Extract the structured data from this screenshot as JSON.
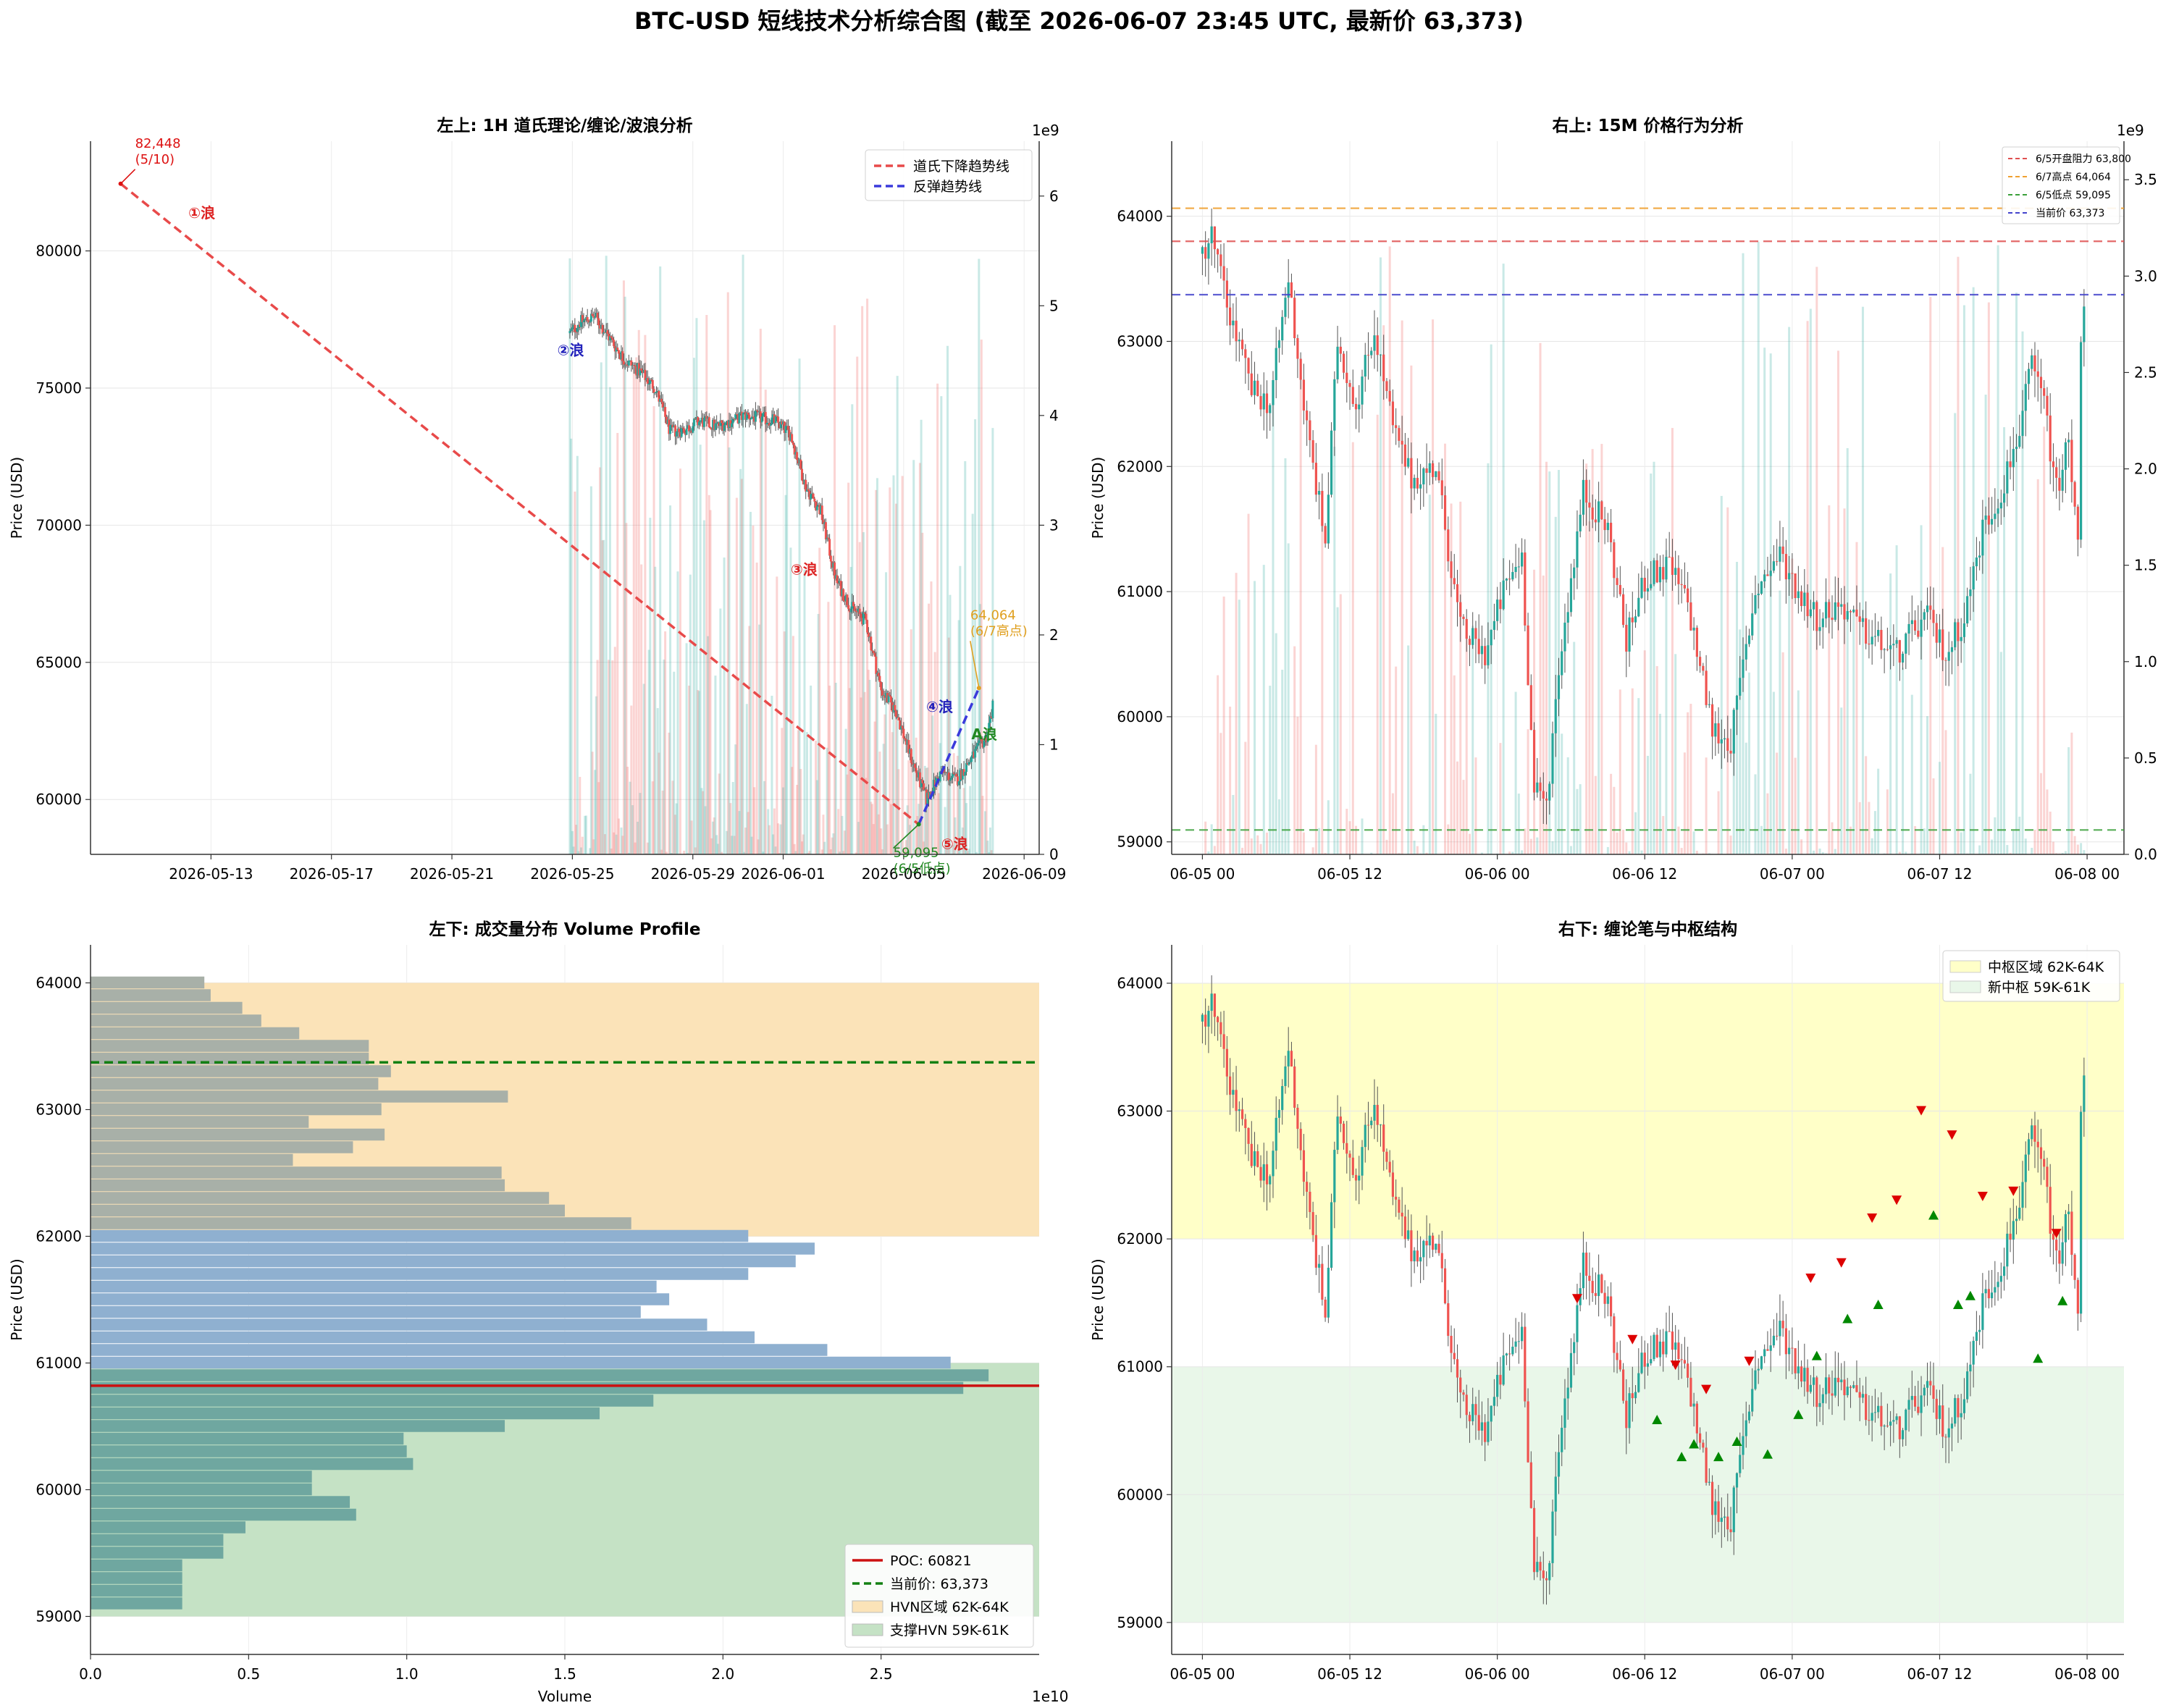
{
  "figure": {
    "suptitle": "BTC-USD 短线技术分析综合图 (截至 2026-06-07 23:45 UTC, 最新价 63,373)"
  },
  "colors": {
    "up": "#26a69a",
    "down": "#ef5350",
    "dow_line": "#e84a4a",
    "rebound_line": "#3a3adb",
    "resistance": "#e05050",
    "high": "#f0a030",
    "low": "#3aa03a",
    "current": "#4444cc",
    "vp_blue": "#8fb0d0",
    "vp_teal": "#6fa7a0",
    "vp_gray": "#a8b0a8",
    "hvn_upper": "#fbe3b8",
    "hvn_lower": "#c5e2c5",
    "zs_upper": "#ffffc8",
    "zs_lower": "#e9f7e9",
    "poc": "#cc1111",
    "current_vp": "#138013"
  },
  "chart_data": [
    {
      "id": "tl",
      "type": "candlestick",
      "title": "左上: 1H 道氏理论/缠论/波浪分析",
      "ylabel": "Price (USD)",
      "ylim": [
        58000,
        84000
      ],
      "yticks": [
        60000,
        65000,
        70000,
        75000,
        80000
      ],
      "xlim": [
        "2026-05-09",
        "2026-06-09 12:00"
      ],
      "xticks": [
        "2026-05-13",
        "2026-05-17",
        "2026-05-21",
        "2026-05-25",
        "2026-05-29",
        "2026-06-01",
        "2026-06-05",
        "2026-06-09"
      ],
      "volume_axis": {
        "label_exponent": "1e9",
        "ylim": [
          0,
          6.5
        ],
        "yticks": [
          0,
          1,
          2,
          3,
          4,
          5,
          6
        ]
      },
      "price_path": [
        [
          "2026-05-24 22:00",
          77000
        ],
        [
          "2026-05-25 06:00",
          77400
        ],
        [
          "2026-05-25 18:00",
          77600
        ],
        [
          "2026-05-26 06:00",
          76800
        ],
        [
          "2026-05-26 18:00",
          76000
        ],
        [
          "2026-05-27 06:00",
          75600
        ],
        [
          "2026-05-27 18:00",
          75000
        ],
        [
          "2026-05-28 06:00",
          73400
        ],
        [
          "2026-05-28 18:00",
          73500
        ],
        [
          "2026-05-29 06:00",
          73800
        ],
        [
          "2026-05-29 18:00",
          73600
        ],
        [
          "2026-05-30 06:00",
          73800
        ],
        [
          "2026-05-30 18:00",
          74000
        ],
        [
          "2026-05-31 06:00",
          73900
        ],
        [
          "2026-05-31 18:00",
          73800
        ],
        [
          "2026-06-01 06:00",
          73300
        ],
        [
          "2026-06-01 18:00",
          71400
        ],
        [
          "2026-06-02 06:00",
          70500
        ],
        [
          "2026-06-02 18:00",
          68000
        ],
        [
          "2026-06-03 06:00",
          67000
        ],
        [
          "2026-06-03 18:00",
          66500
        ],
        [
          "2026-06-04 06:00",
          64000
        ],
        [
          "2026-06-04 18:00",
          63200
        ],
        [
          "2026-06-05 06:00",
          61500
        ],
        [
          "2026-06-05 18:00",
          60000
        ],
        [
          "2026-06-06 06:00",
          61000
        ],
        [
          "2026-06-06 18:00",
          60700
        ],
        [
          "2026-06-07 06:00",
          61500
        ],
        [
          "2026-06-07 18:00",
          62300
        ],
        [
          "2026-06-07 23:00",
          63373
        ]
      ],
      "lines": [
        {
          "name": "道氏下降趋势线",
          "color_key": "dow_line",
          "points": [
            [
              "2026-05-10",
              82448
            ],
            [
              "2026-06-05 12:00",
              59095
            ]
          ]
        },
        {
          "name": "反弹趋势线",
          "color_key": "rebound_line",
          "points": [
            [
              "2026-06-05 12:00",
              59095
            ],
            [
              "2026-06-07 12:00",
              64064
            ]
          ]
        }
      ],
      "legend_position": "upper right",
      "annotations": [
        {
          "text": "82,448\n(5/10)",
          "x": "2026-05-10",
          "y": 82448,
          "color": "#dd1111"
        },
        {
          "text": "64,064\n(6/7高点)",
          "x": "2026-06-07 12:00",
          "y": 64064,
          "color": "#e0a020"
        },
        {
          "text": "59,095\n(6/5低点)",
          "x": "2026-06-05 12:00",
          "y": 59095,
          "color": "#228822"
        }
      ],
      "wave_labels": [
        {
          "text": "①浪",
          "x": "2026-05-12 06:00",
          "y": 81200,
          "color": "#dd2222"
        },
        {
          "text": "②浪",
          "x": "2026-05-24 12:00",
          "y": 76200,
          "color": "#2222bb"
        },
        {
          "text": "③浪",
          "x": "2026-06-01 06:00",
          "y": 68200,
          "color": "#dd2222"
        },
        {
          "text": "④浪",
          "x": "2026-06-05 18:00",
          "y": 63200,
          "color": "#2222bb"
        },
        {
          "text": "⑤浪",
          "x": "2026-06-06 06:00",
          "y": 58200,
          "color": "#dd2222"
        },
        {
          "text": "A浪",
          "x": "2026-06-07 06:00",
          "y": 62200,
          "color": "#228822"
        }
      ]
    },
    {
      "id": "tr",
      "type": "candlestick",
      "title": "右上: 15M 价格行为分析",
      "ylabel": "Price (USD)",
      "ylim": [
        58900,
        64600
      ],
      "yticks": [
        59000,
        60000,
        61000,
        62000,
        63000,
        64000
      ],
      "xlim": [
        "2026-06-04 21:30",
        "2026-06-08 03:00"
      ],
      "xticks": [
        "06-05 00",
        "06-05 12",
        "06-06 00",
        "06-06 12",
        "06-07 00",
        "06-07 12",
        "06-08 00"
      ],
      "volume_axis": {
        "label_exponent": "1e9",
        "ylim": [
          0,
          3.7
        ],
        "yticks": [
          0.0,
          0.5,
          1.0,
          1.5,
          2.0,
          2.5,
          3.0,
          3.5
        ]
      },
      "hlines": [
        {
          "name": "6/5开盘阻力 63,800",
          "y": 63800,
          "color_key": "resistance"
        },
        {
          "name": "6/7高点 64,064",
          "y": 64064,
          "color_key": "high"
        },
        {
          "name": "6/5低点 59,095",
          "y": 59095,
          "color_key": "low"
        },
        {
          "name": "当前价 63,373",
          "y": 63373,
          "color_key": "current"
        }
      ],
      "legend_position": "upper right"
    },
    {
      "id": "bl",
      "type": "barh",
      "title": "左下: 成交量分布 Volume Profile",
      "xlabel": "Volume",
      "ylabel": "Price (USD)",
      "x_exponent": "1e10",
      "xlim": [
        0,
        3.0
      ],
      "xticks": [
        0.0,
        0.5,
        1.0,
        1.5,
        2.0,
        2.5
      ],
      "ylim": [
        58700,
        64300
      ],
      "yticks": [
        59000,
        60000,
        61000,
        62000,
        63000,
        64000
      ],
      "bin_width": 100,
      "price_bins": [
        59100,
        59200,
        59300,
        59400,
        59500,
        59600,
        59700,
        59800,
        59900,
        60000,
        60100,
        60200,
        60300,
        60400,
        60500,
        60600,
        60700,
        60800,
        60900,
        61000,
        61100,
        61200,
        61300,
        61400,
        61500,
        61600,
        61700,
        61800,
        61900,
        62000,
        62100,
        62200,
        62300,
        62400,
        62500,
        62600,
        62700,
        62800,
        62900,
        63000,
        63100,
        63200,
        63300,
        63400,
        63500,
        63600,
        63700,
        63800,
        63900,
        64000
      ],
      "volumes": [
        0.29,
        0.29,
        0.29,
        0.29,
        0.42,
        0.42,
        0.49,
        0.84,
        0.82,
        0.7,
        0.7,
        1.02,
        1.0,
        0.99,
        1.31,
        1.61,
        1.78,
        2.76,
        2.84,
        2.72,
        2.33,
        2.1,
        1.95,
        1.74,
        1.83,
        1.79,
        2.08,
        2.23,
        2.29,
        2.08,
        1.71,
        1.5,
        1.45,
        1.31,
        1.3,
        0.64,
        0.83,
        0.93,
        0.69,
        0.92,
        1.32,
        0.91,
        0.95,
        0.88,
        0.88,
        0.66,
        0.54,
        0.48,
        0.38,
        0.36
      ],
      "poc": 60821,
      "current": 63373,
      "zones": [
        {
          "name": "HVN区域 62K-64K",
          "y0": 62000,
          "y1": 64000,
          "color_key": "hvn_upper"
        },
        {
          "name": "支撑HVN 59K-61K",
          "y0": 59000,
          "y1": 61000,
          "color_key": "hvn_lower"
        }
      ],
      "legend": [
        "POC: 60821",
        "当前价: 63,373",
        "HVN区域 62K-64K",
        "支撑HVN 59K-61K"
      ],
      "legend_position": "lower right"
    },
    {
      "id": "br",
      "type": "candlestick",
      "title": "右下: 缠论笔与中枢结构",
      "ylim": [
        58750,
        64300
      ],
      "yticks": [
        59000,
        60000,
        61000,
        62000,
        63000,
        64000
      ],
      "ylabel": "Price (USD)",
      "xlim": [
        "2026-06-04 21:30",
        "2026-06-08 03:00"
      ],
      "xticks": [
        "06-05 00",
        "06-05 12",
        "06-06 00",
        "06-06 12",
        "06-07 00",
        "06-07 12",
        "06-08 00"
      ],
      "zones": [
        {
          "name": "中枢区域 62K-64K",
          "y0": 62000,
          "y1": 64000,
          "color_key": "zs_upper"
        },
        {
          "name": "新中枢 59K-61K",
          "y0": 59000,
          "y1": 61000,
          "color_key": "zs_lower"
        }
      ],
      "legend_position": "upper right",
      "tops": [
        [
          "2026-06-06 06:30",
          61450
        ],
        [
          "2026-06-06 11:00",
          61130
        ],
        [
          "2026-06-06 14:30",
          60930
        ],
        [
          "2026-06-06 17:00",
          60740
        ],
        [
          "2026-06-06 20:30",
          60960
        ],
        [
          "2026-06-07 01:30",
          61610
        ],
        [
          "2026-06-07 04:00",
          61730
        ],
        [
          "2026-06-07 06:30",
          62080
        ],
        [
          "2026-06-07 08:30",
          62220
        ],
        [
          "2026-06-07 10:30",
          62920
        ],
        [
          "2026-06-07 13:00",
          62730
        ],
        [
          "2026-06-07 15:30",
          62250
        ],
        [
          "2026-06-07 18:00",
          62290
        ],
        [
          "2026-06-07 21:30",
          61960
        ]
      ],
      "bottoms": [
        [
          "2026-06-06 13:00",
          60670
        ],
        [
          "2026-06-06 15:00",
          60380
        ],
        [
          "2026-06-06 16:00",
          60480
        ],
        [
          "2026-06-06 18:00",
          60380
        ],
        [
          "2026-06-06 19:30",
          60500
        ],
        [
          "2026-06-06 22:00",
          60400
        ],
        [
          "2026-06-07 00:30",
          60710
        ],
        [
          "2026-06-07 02:00",
          61170
        ],
        [
          "2026-06-07 04:30",
          61460
        ],
        [
          "2026-06-07 07:00",
          61570
        ],
        [
          "2026-06-07 11:30",
          62270
        ],
        [
          "2026-06-07 13:30",
          61570
        ],
        [
          "2026-06-07 14:30",
          61640
        ],
        [
          "2026-06-07 20:00",
          61150
        ],
        [
          "2026-06-07 22:00",
          61600
        ]
      ]
    }
  ],
  "intraday_path": [
    [
      "2026-06-05 00:00",
      63700
    ],
    [
      "2026-06-05 00:45",
      63850
    ],
    [
      "2026-06-05 02:00",
      63300
    ],
    [
      "2026-06-05 04:00",
      62600
    ],
    [
      "2026-06-05 05:30",
      62500
    ],
    [
      "2026-06-05 07:00",
      63500
    ],
    [
      "2026-06-05 08:30",
      62300
    ],
    [
      "2026-06-05 10:00",
      61400
    ],
    [
      "2026-06-05 11:00",
      63000
    ],
    [
      "2026-06-05 12:30",
      62500
    ],
    [
      "2026-06-05 14:00",
      63100
    ],
    [
      "2026-06-05 15:30",
      62300
    ],
    [
      "2026-06-05 17:00",
      61900
    ],
    [
      "2026-06-05 19:00",
      62000
    ],
    [
      "2026-06-05 21:00",
      60700
    ],
    [
      "2026-06-05 23:00",
      60500
    ],
    [
      "2026-06-06 00:30",
      61000
    ],
    [
      "2026-06-06 02:00",
      61300
    ],
    [
      "2026-06-06 03:00",
      59400
    ],
    [
      "2026-06-06 04:00",
      59300
    ],
    [
      "2026-06-06 05:00",
      60400
    ],
    [
      "2026-06-06 07:00",
      61800
    ],
    [
      "2026-06-06 09:00",
      61500
    ],
    [
      "2026-06-06 10:30",
      60600
    ],
    [
      "2026-06-06 12:00",
      61100
    ],
    [
      "2026-06-06 14:00",
      61200
    ],
    [
      "2026-06-06 15:30",
      60900
    ],
    [
      "2026-06-06 17:30",
      59900
    ],
    [
      "2026-06-06 19:00",
      59800
    ],
    [
      "2026-06-06 21:00",
      61000
    ],
    [
      "2026-06-06 23:00",
      61300
    ],
    [
      "2026-06-07 00:30",
      61000
    ],
    [
      "2026-06-07 02:00",
      60800
    ],
    [
      "2026-06-07 04:00",
      60900
    ],
    [
      "2026-06-07 05:30",
      60700
    ],
    [
      "2026-06-07 07:00",
      60600
    ],
    [
      "2026-06-07 08:30",
      60500
    ],
    [
      "2026-06-07 10:00",
      60700
    ],
    [
      "2026-06-07 11:00",
      60800
    ],
    [
      "2026-06-07 12:30",
      60500
    ],
    [
      "2026-06-07 14:00",
      60800
    ],
    [
      "2026-06-07 15:30",
      61500
    ],
    [
      "2026-06-07 17:00",
      61800
    ],
    [
      "2026-06-07 18:30",
      62300
    ],
    [
      "2026-06-07 19:30",
      62800
    ],
    [
      "2026-06-07 20:30",
      62500
    ],
    [
      "2026-06-07 21:30",
      61800
    ],
    [
      "2026-06-07 22:30",
      62200
    ],
    [
      "2026-06-07 23:00",
      61600
    ],
    [
      "2026-06-07 23:15",
      61500
    ],
    [
      "2026-06-07 23:25",
      61900
    ],
    [
      "2026-06-07 23:33",
      63700
    ],
    [
      "2026-06-07 23:38",
      62900
    ],
    [
      "2026-06-07 23:45",
      63373
    ]
  ]
}
